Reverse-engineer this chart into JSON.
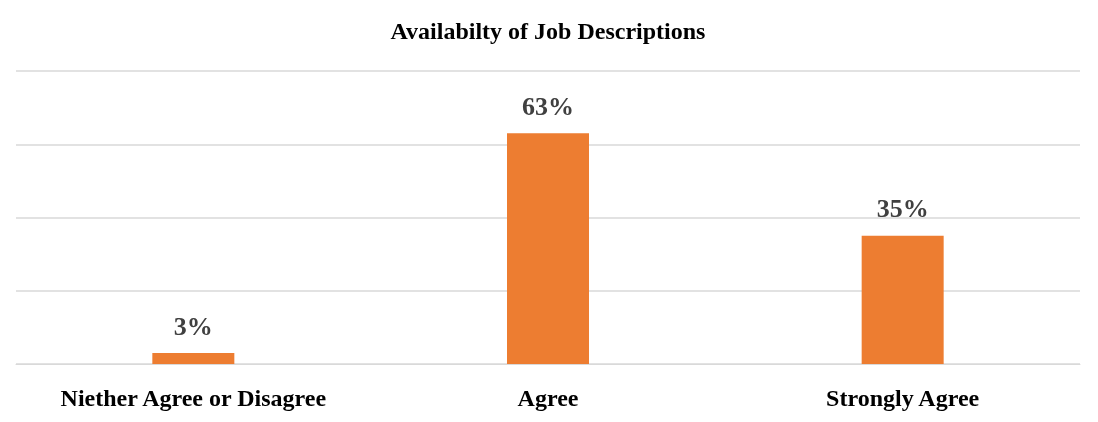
{
  "chart_data": {
    "type": "bar",
    "title": "Availabilty of Job Descriptions",
    "categories": [
      "Niether Agree or Disagree",
      "Agree",
      "Strongly Agree"
    ],
    "values": [
      3,
      63,
      35
    ],
    "value_labels": [
      "3%",
      "63%",
      "35%"
    ],
    "color": "#ed7d31",
    "ylim": [
      0,
      80
    ],
    "yticks": [
      0,
      20,
      40,
      60,
      80
    ],
    "grid": "y",
    "tick_labels": "x"
  }
}
